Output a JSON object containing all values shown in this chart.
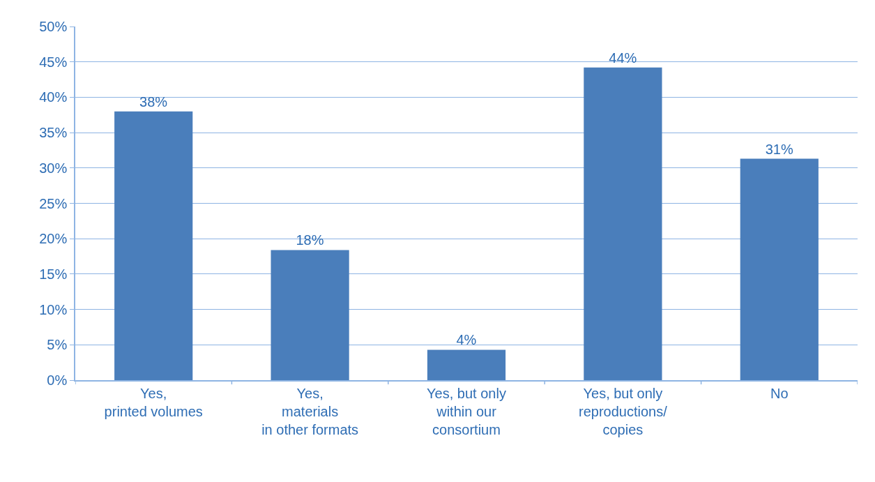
{
  "chart_data": {
    "type": "bar",
    "categories": [
      "Yes,\nprinted volumes",
      "Yes,\nmaterials\nin other formats",
      "Yes, but only\nwithin our\nconsortium",
      "Yes, but only\nreproductions/\ncopies",
      "No"
    ],
    "values": [
      38,
      18.4,
      4.3,
      44.2,
      31.3
    ],
    "value_labels": [
      "38%",
      "18%",
      "4%",
      "44%",
      "31%"
    ],
    "color": "#4a7ebb",
    "ylim": [
      0,
      50
    ],
    "yticks": [
      {
        "value": 0,
        "label": "0%"
      },
      {
        "value": 5,
        "label": "5%"
      },
      {
        "value": 10,
        "label": "10%"
      },
      {
        "value": 15,
        "label": "15%"
      },
      {
        "value": 20,
        "label": "20%"
      },
      {
        "value": 25,
        "label": "25%"
      },
      {
        "value": 30,
        "label": "30%"
      },
      {
        "value": 35,
        "label": "35%"
      },
      {
        "value": 40,
        "label": "40%"
      },
      {
        "value": 45,
        "label": "45%"
      },
      {
        "value": 50,
        "label": "50%"
      }
    ],
    "grid": "y"
  }
}
